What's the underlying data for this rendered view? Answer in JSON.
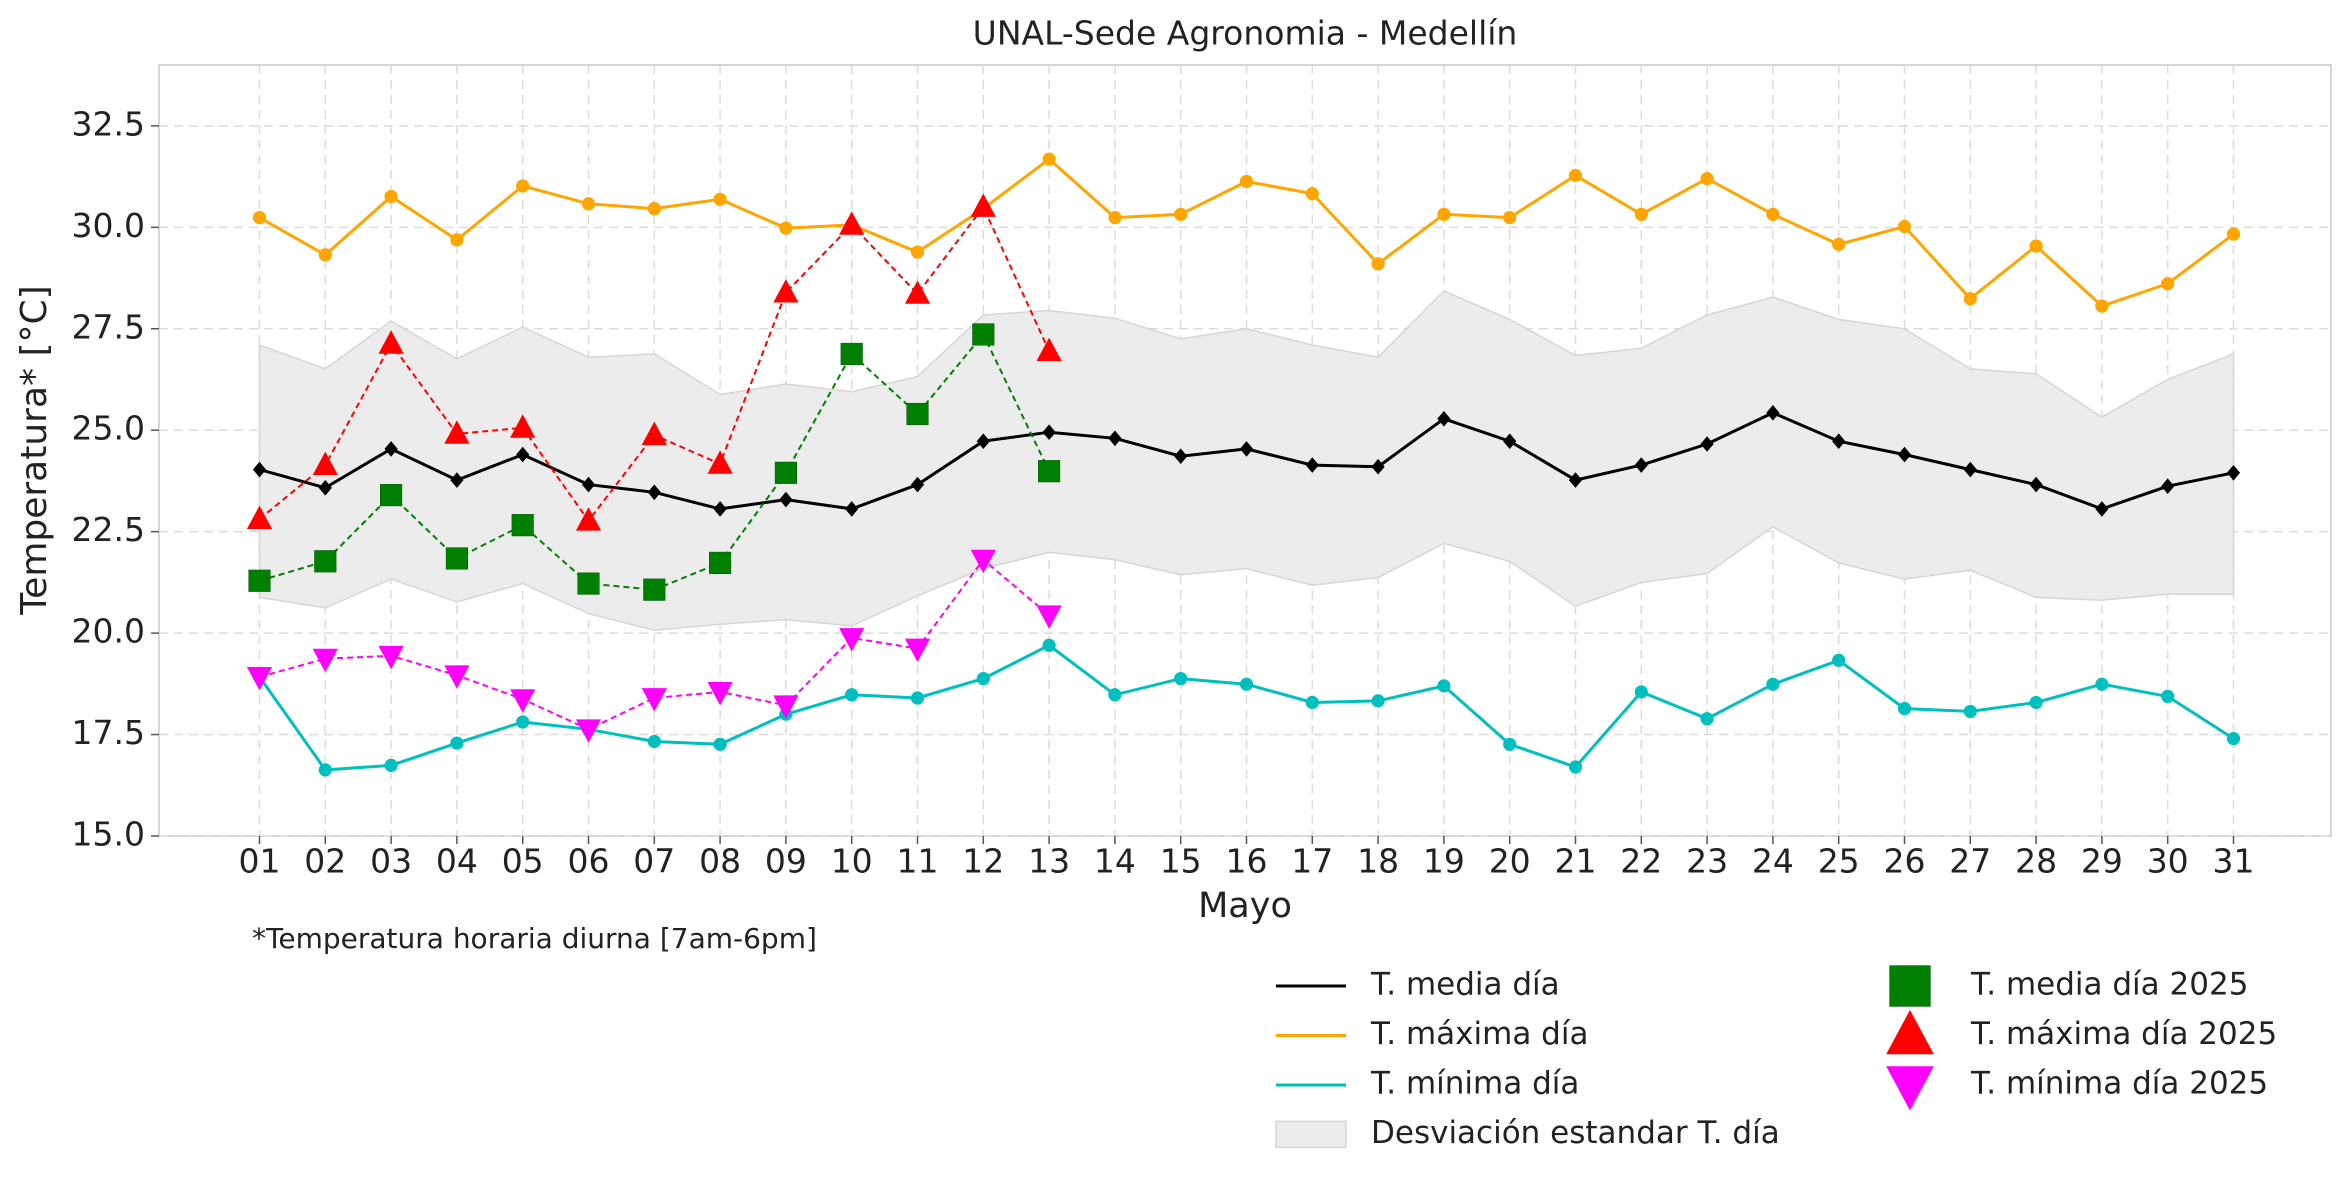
{
  "chart_data": {
    "type": "line",
    "title": "UNAL-Sede Agronomia - Medellín",
    "xlabel": "Mayo",
    "ylabel": "Temperatura* [°C]",
    "annotation": "*Temperatura horaria diurna [7am-6pm]",
    "categories": [
      "01",
      "02",
      "03",
      "04",
      "05",
      "06",
      "07",
      "08",
      "09",
      "10",
      "11",
      "12",
      "13",
      "14",
      "15",
      "16",
      "17",
      "18",
      "19",
      "20",
      "21",
      "22",
      "23",
      "24",
      "25",
      "26",
      "27",
      "28",
      "29",
      "30",
      "31"
    ],
    "ylim": [
      15,
      34
    ],
    "yticks": [
      {
        "value": 15,
        "label": "15.0"
      },
      17.5,
      {
        "value": 20,
        "label": "20.0"
      },
      22.5,
      {
        "value": 25,
        "label": "25.0"
      },
      27.5,
      {
        "value": 30,
        "label": "30.0"
      },
      32.5
    ],
    "grid": true,
    "band": {
      "name": "Desviación estandar T. día",
      "color": "#ececec",
      "upper": [
        27.1,
        26.51,
        27.69,
        26.76,
        27.54,
        26.8,
        26.88,
        25.88,
        26.14,
        25.95,
        26.32,
        27.84,
        27.95,
        27.76,
        27.25,
        27.5,
        27.1,
        26.8,
        28.43,
        27.73,
        26.84,
        27.02,
        27.84,
        28.28,
        27.73,
        27.5,
        26.51,
        26.39,
        25.32,
        26.25,
        26.88
      ],
      "lower": [
        20.88,
        20.62,
        21.33,
        20.77,
        21.22,
        20.48,
        20.07,
        20.22,
        20.33,
        20.18,
        20.92,
        21.59,
        21.99,
        21.81,
        21.44,
        21.59,
        21.18,
        21.37,
        22.21,
        21.77,
        20.66,
        21.25,
        21.47,
        22.62,
        21.73,
        21.33,
        21.55,
        20.88,
        20.81,
        20.96,
        20.96
      ]
    },
    "series": [
      {
        "name": "T. media día",
        "color": "#000000",
        "marker": "diamond",
        "linestyle": "solid",
        "values": [
          24.03,
          23.58,
          24.54,
          23.77,
          24.4,
          23.66,
          23.47,
          23.06,
          23.29,
          23.06,
          23.66,
          24.73,
          24.95,
          24.8,
          24.36,
          24.54,
          24.14,
          24.1,
          25.28,
          24.73,
          23.77,
          24.14,
          24.66,
          25.43,
          24.73,
          24.4,
          24.03,
          23.66,
          23.06,
          23.62,
          23.95
        ]
      },
      {
        "name": "T. máxima día",
        "color": "#ffa500",
        "marker": "circle",
        "linestyle": "solid",
        "values": [
          30.24,
          29.32,
          30.76,
          29.69,
          31.02,
          30.58,
          30.46,
          30.69,
          29.98,
          30.06,
          29.39,
          30.46,
          31.68,
          30.24,
          30.32,
          31.13,
          30.83,
          29.1,
          30.32,
          30.24,
          31.28,
          30.32,
          31.2,
          30.32,
          29.58,
          30.02,
          28.24,
          29.54,
          28.06,
          28.61,
          29.83
        ]
      },
      {
        "name": "T. mínima día",
        "color": "#00bfbf",
        "marker": "circle",
        "linestyle": "solid",
        "values": [
          18.92,
          16.63,
          16.74,
          17.29,
          17.81,
          17.63,
          17.33,
          17.26,
          18.0,
          18.48,
          18.4,
          18.88,
          19.7,
          18.48,
          18.88,
          18.74,
          18.29,
          18.33,
          18.7,
          17.26,
          16.7,
          18.55,
          17.89,
          18.74,
          19.33,
          18.14,
          18.07,
          18.29,
          18.74,
          18.44,
          17.4
        ]
      },
      {
        "name": "T. media día 2025",
        "color": "#008000",
        "marker": "square",
        "linestyle": "dashed",
        "values": [
          21.29,
          21.77,
          23.4,
          21.84,
          22.66,
          21.22,
          21.07,
          21.73,
          23.95,
          26.88,
          25.4,
          27.36,
          23.99,
          null,
          null,
          null,
          null,
          null,
          null,
          null,
          null,
          null,
          null,
          null,
          null,
          null,
          null,
          null,
          null,
          null,
          null
        ]
      },
      {
        "name": "T. máxima día 2025",
        "color": "#ff0000",
        "marker": "triangle-up",
        "linestyle": "dashed",
        "values": [
          22.81,
          24.14,
          27.13,
          24.91,
          25.06,
          22.77,
          24.88,
          24.17,
          28.39,
          30.06,
          28.36,
          30.5,
          26.95,
          null,
          null,
          null,
          null,
          null,
          null,
          null,
          null,
          null,
          null,
          null,
          null,
          null,
          null,
          null,
          null,
          null,
          null
        ]
      },
      {
        "name": "T. mínima día 2025",
        "color": "#ff00ff",
        "marker": "triangle-down",
        "linestyle": "dashed",
        "values": [
          18.92,
          19.37,
          19.44,
          18.96,
          18.37,
          17.63,
          18.4,
          18.55,
          18.22,
          19.88,
          19.62,
          21.81,
          20.44,
          null,
          null,
          null,
          null,
          null,
          null,
          null,
          null,
          null,
          null,
          null,
          null,
          null,
          null,
          null,
          null,
          null,
          null
        ]
      }
    ]
  }
}
